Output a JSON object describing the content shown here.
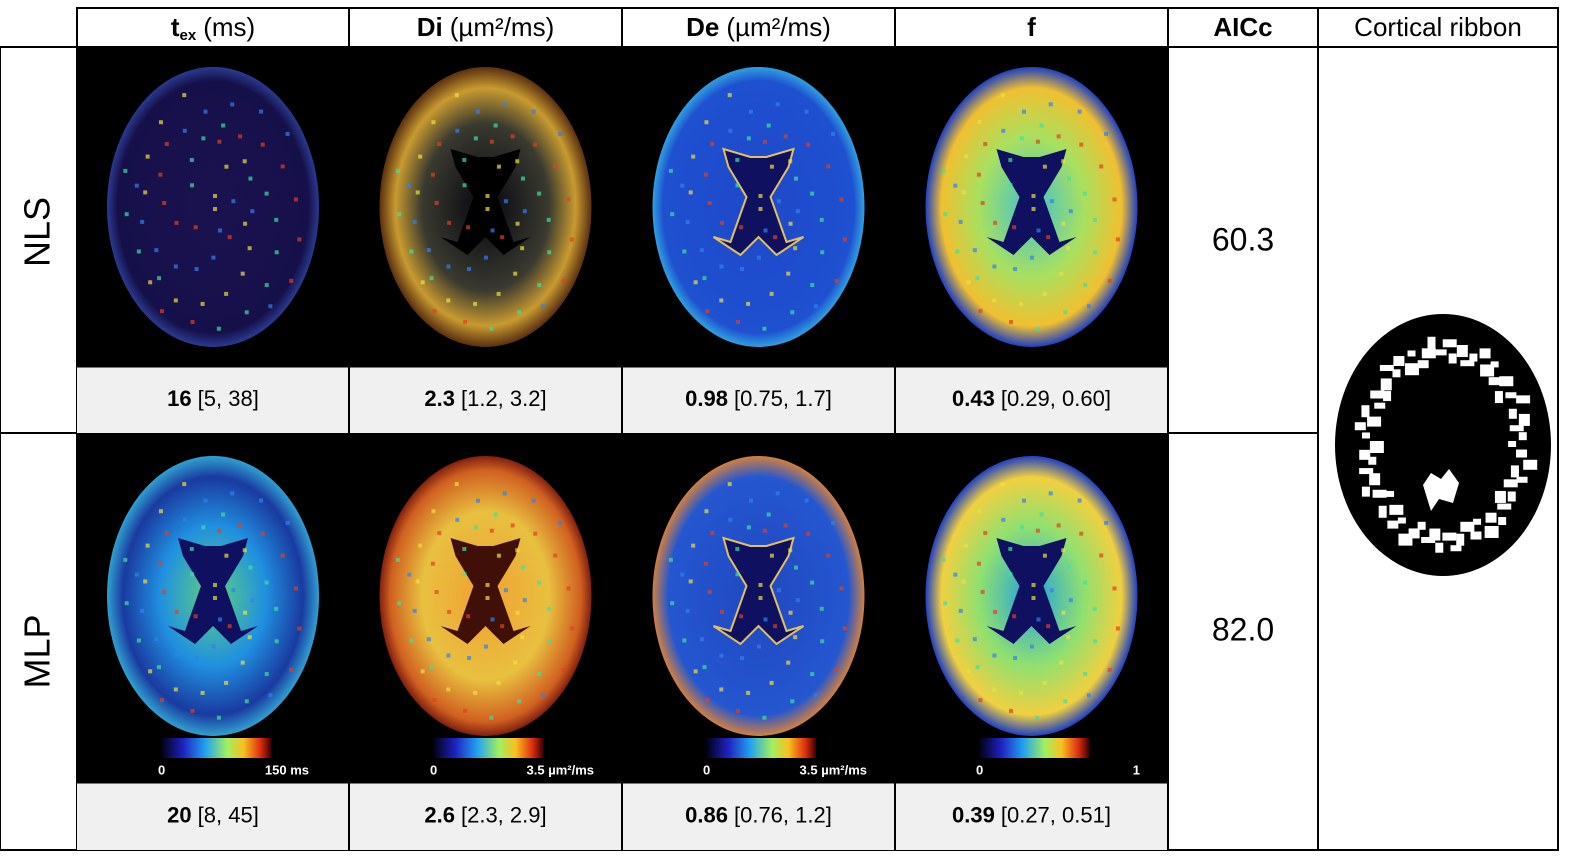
{
  "header": {
    "columns": [
      {
        "name": "t",
        "subscript": "ex",
        "unit": "(ms)"
      },
      {
        "name": "Di",
        "unit": "(µm²/ms)"
      },
      {
        "name": "De",
        "unit": "(µm²/ms)"
      },
      {
        "name": "f"
      },
      {
        "name": "AICc"
      },
      {
        "plain": "Cortical ribbon"
      }
    ]
  },
  "rows": [
    {
      "label": "NLS",
      "stats": [
        {
          "median": "16",
          "range": "[5, 38]"
        },
        {
          "median": "2.3",
          "range": "[1.2, 3.2]"
        },
        {
          "median": "0.98",
          "range": "[0.75, 1.7]"
        },
        {
          "median": "0.43",
          "range": "[0.29, 0.60]"
        }
      ],
      "aicc": "60.3"
    },
    {
      "label": "MLP",
      "stats": [
        {
          "median": "20",
          "range": "[8, 45]"
        },
        {
          "median": "2.6",
          "range": "[2.3, 2.9]"
        },
        {
          "median": "0.86",
          "range": "[0.76, 1.2]"
        },
        {
          "median": "0.39",
          "range": "[0.27, 0.51]"
        }
      ],
      "aicc": "82.0"
    }
  ],
  "colorbars": [
    {
      "min": "0",
      "max": "150 ms"
    },
    {
      "min": "0",
      "max": "3.5 µm²/ms"
    },
    {
      "min": "0",
      "max": "3.5 µm²/ms"
    },
    {
      "min": "0",
      "max": "1"
    }
  ]
}
